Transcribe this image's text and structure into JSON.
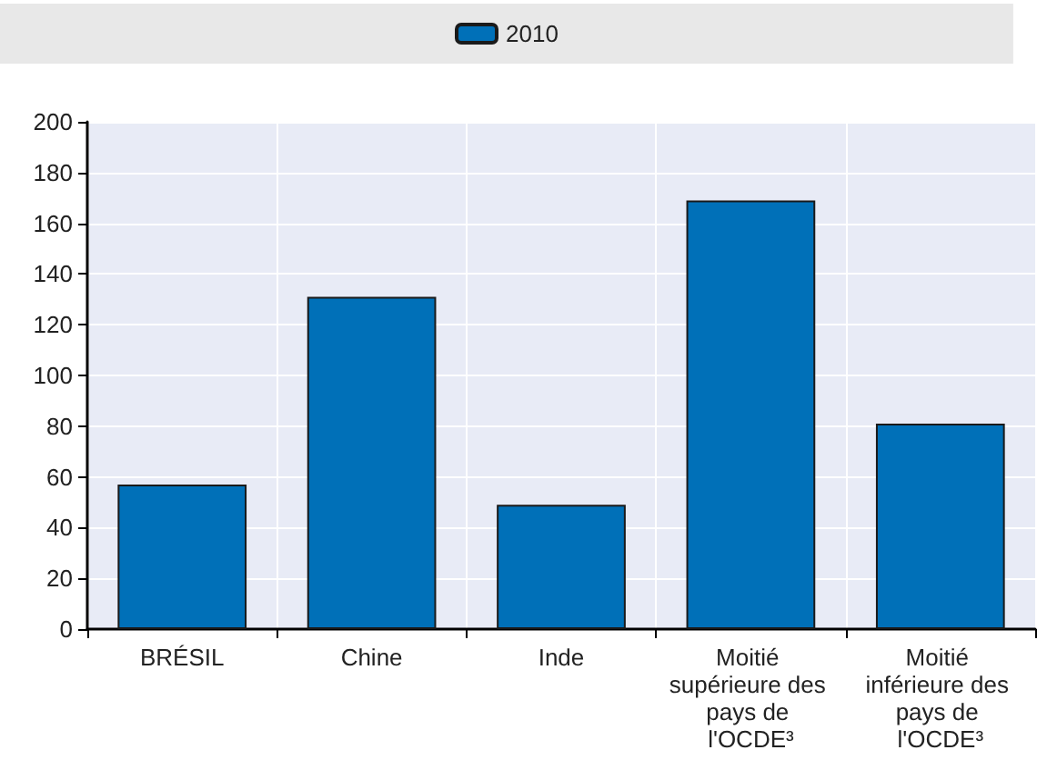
{
  "chart_data": {
    "type": "bar",
    "categories": [
      "BRÉSIL",
      "Chine",
      "Inde",
      "Moitié supérieure des pays de l'OCDE³",
      "Moitié inférieure des pays de l'OCDE³"
    ],
    "series": [
      {
        "name": "2010",
        "color": "#0070b8",
        "values": [
          57,
          131,
          49,
          169,
          81
        ]
      }
    ],
    "ylim": [
      0,
      200
    ],
    "yticks": [
      0,
      20,
      40,
      60,
      80,
      100,
      120,
      140,
      160,
      180,
      200
    ],
    "grid": true,
    "legend": "top"
  }
}
